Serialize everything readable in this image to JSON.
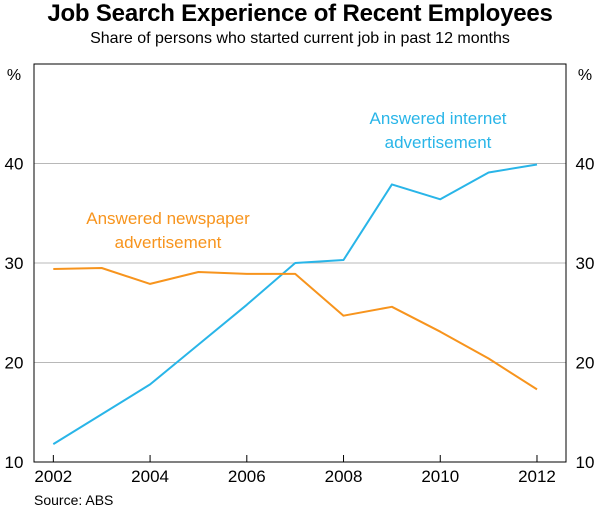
{
  "chart_data": {
    "type": "line",
    "title": "Job Search Experience of Recent Employees",
    "subtitle": "Share of persons who started current job in past 12 months",
    "source": "Source: ABS",
    "y_unit_left": "%",
    "y_unit_right": "%",
    "ylim": [
      10,
      50
    ],
    "yticks": [
      10,
      20,
      30,
      40
    ],
    "xlim": [
      2001.6,
      2012.6
    ],
    "xticks": [
      2002,
      2004,
      2006,
      2008,
      2010,
      2012
    ],
    "grid": true,
    "series": [
      {
        "name": "Answered internet advertisement",
        "label_lines": [
          "Answered internet",
          "advertisement"
        ],
        "color": "#29b5e8",
        "x": [
          2002,
          2004,
          2005,
          2006,
          2007,
          2008,
          2009,
          2010,
          2011,
          2012
        ],
        "values": [
          11.8,
          17.8,
          21.8,
          25.8,
          30.0,
          30.3,
          37.9,
          36.4,
          39.1,
          39.9
        ]
      },
      {
        "name": "Answered newspaper advertisement",
        "label_lines": [
          "Answered newspaper",
          "advertisement"
        ],
        "color": "#f7941d",
        "x": [
          2002,
          2003,
          2004,
          2005,
          2006,
          2007,
          2008,
          2009,
          2010,
          2011,
          2012
        ],
        "values": [
          29.4,
          29.5,
          27.9,
          29.1,
          28.9,
          28.9,
          24.7,
          25.6,
          23.1,
          20.4,
          17.3
        ]
      }
    ]
  }
}
